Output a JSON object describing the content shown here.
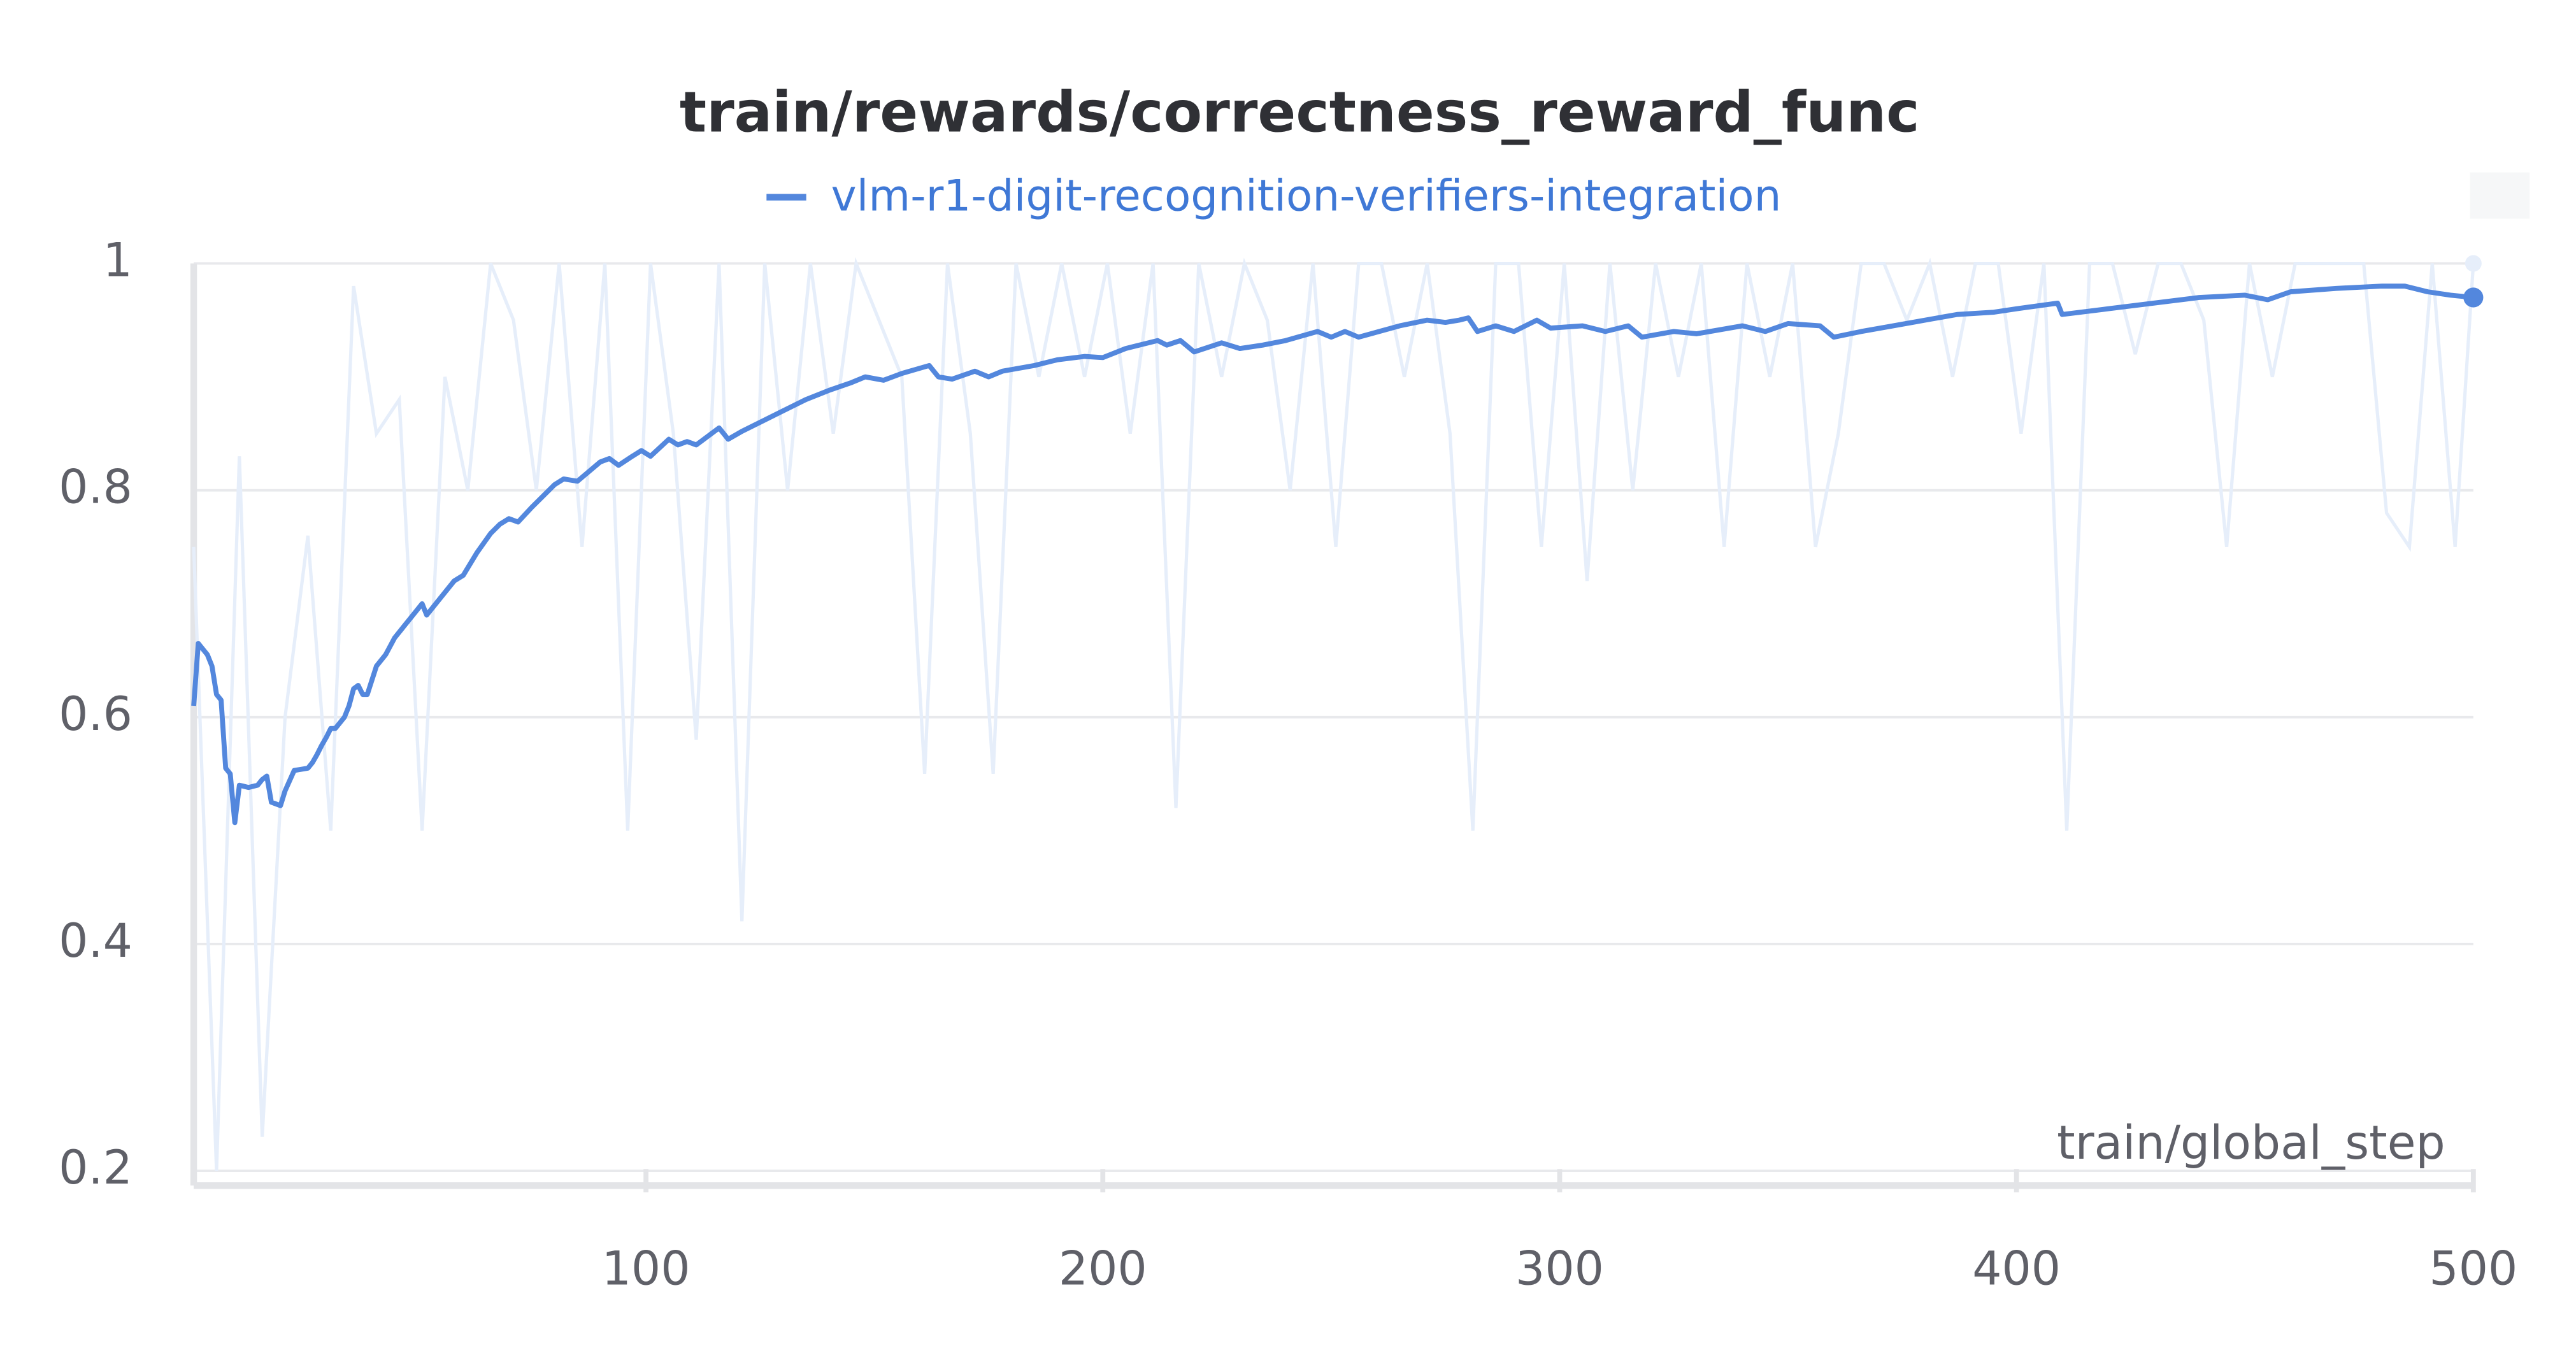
{
  "chart_data": {
    "type": "line",
    "title": "train/rewards/correctness_reward_func",
    "x_label": "train/global_step",
    "xlim": [
      1,
      500
    ],
    "xticks": [
      100,
      200,
      300,
      400,
      500
    ],
    "ylim": [
      0.187,
      1
    ],
    "yticks": [
      0.2,
      0.4,
      0.6,
      0.8,
      1
    ],
    "grid": true,
    "series": [
      {
        "name": "vlm-r1-digit-recognition-verifiers-integration",
        "color": "#5387dd",
        "raw_color": "#e6eefa",
        "x": [
          1,
          2,
          4,
          5,
          6,
          7,
          8,
          9,
          10,
          11,
          13,
          15,
          16,
          17,
          18,
          20,
          21,
          23,
          26,
          27,
          28,
          29,
          30,
          31,
          32,
          34,
          35,
          36,
          37,
          38,
          39,
          41,
          43,
          45,
          47,
          49,
          51,
          52,
          55,
          58,
          60,
          63,
          66,
          68,
          70,
          72,
          75,
          80,
          82,
          85,
          90,
          92,
          94,
          97,
          99,
          101,
          105,
          107,
          109,
          111,
          116,
          118,
          121,
          125,
          130,
          135,
          140,
          145,
          148,
          152,
          156,
          162,
          164,
          167,
          172,
          175,
          178,
          185,
          190,
          196,
          200,
          205,
          212,
          214,
          217,
          220,
          226,
          230,
          235,
          240,
          247,
          250,
          253,
          256,
          265,
          271,
          275,
          278,
          280,
          282,
          286,
          290,
          295,
          298,
          305,
          310,
          315,
          318,
          325,
          330,
          340,
          345,
          350,
          357,
          360,
          366,
          373,
          380,
          387,
          395,
          400,
          409,
          410,
          420,
          430,
          440,
          450,
          455,
          460,
          470,
          480,
          485,
          490,
          495,
          500
        ],
        "values": [
          0.61,
          0.665,
          0.655,
          0.645,
          0.62,
          0.615,
          0.555,
          0.55,
          0.507,
          0.54,
          0.538,
          0.54,
          0.545,
          0.548,
          0.525,
          0.522,
          0.535,
          0.553,
          0.555,
          0.56,
          0.567,
          0.575,
          0.582,
          0.59,
          0.59,
          0.6,
          0.61,
          0.625,
          0.628,
          0.62,
          0.62,
          0.645,
          0.655,
          0.67,
          0.68,
          0.69,
          0.7,
          0.69,
          0.705,
          0.72,
          0.725,
          0.745,
          0.762,
          0.77,
          0.775,
          0.772,
          0.785,
          0.805,
          0.81,
          0.808,
          0.825,
          0.828,
          0.822,
          0.83,
          0.835,
          0.83,
          0.845,
          0.84,
          0.843,
          0.84,
          0.855,
          0.845,
          0.852,
          0.86,
          0.87,
          0.88,
          0.888,
          0.895,
          0.9,
          0.897,
          0.903,
          0.91,
          0.9,
          0.898,
          0.905,
          0.9,
          0.905,
          0.91,
          0.915,
          0.918,
          0.917,
          0.925,
          0.932,
          0.928,
          0.932,
          0.922,
          0.93,
          0.925,
          0.928,
          0.932,
          0.94,
          0.935,
          0.94,
          0.935,
          0.945,
          0.95,
          0.948,
          0.95,
          0.952,
          0.94,
          0.945,
          0.94,
          0.95,
          0.943,
          0.945,
          0.94,
          0.945,
          0.935,
          0.94,
          0.938,
          0.945,
          0.94,
          0.947,
          0.945,
          0.935,
          0.94,
          0.945,
          0.95,
          0.955,
          0.957,
          0.96,
          0.965,
          0.955,
          0.96,
          0.965,
          0.97,
          0.972,
          0.968,
          0.975,
          0.978,
          0.98,
          0.98,
          0.975,
          0.972,
          0.97
        ],
        "raw_x": [
          1,
          6,
          11,
          16,
          21,
          26,
          31,
          36,
          41,
          46,
          51,
          56,
          61,
          66,
          71,
          76,
          81,
          86,
          91,
          96,
          101,
          106,
          111,
          116,
          121,
          126,
          131,
          136,
          141,
          146,
          151,
          156,
          161,
          166,
          171,
          176,
          181,
          186,
          191,
          196,
          201,
          206,
          211,
          216,
          221,
          226,
          231,
          236,
          241,
          246,
          251,
          256,
          261,
          266,
          271,
          276,
          281,
          286,
          291,
          296,
          301,
          306,
          311,
          316,
          321,
          326,
          331,
          336,
          341,
          346,
          351,
          356,
          361,
          366,
          371,
          376,
          381,
          386,
          391,
          396,
          401,
          406,
          411,
          416,
          421,
          426,
          431,
          436,
          441,
          446,
          451,
          456,
          461,
          466,
          471,
          476,
          481,
          486,
          491,
          496,
          500
        ],
        "raw_values": [
          0.75,
          0.2,
          0.83,
          0.23,
          0.6,
          0.76,
          0.5,
          0.98,
          0.85,
          0.88,
          0.5,
          0.9,
          0.8,
          1,
          0.95,
          0.8,
          1,
          0.75,
          1,
          0.5,
          1,
          0.85,
          0.58,
          1,
          0.42,
          1,
          0.8,
          1,
          0.85,
          1,
          0.95,
          0.9,
          0.55,
          1,
          0.85,
          0.55,
          1,
          0.9,
          1,
          0.9,
          1,
          0.85,
          1,
          0.52,
          1,
          0.9,
          1,
          0.95,
          0.8,
          1,
          0.75,
          1,
          1,
          0.9,
          1,
          0.85,
          0.5,
          1,
          1,
          0.75,
          1,
          0.72,
          1,
          0.8,
          1,
          0.9,
          1,
          0.75,
          1,
          0.9,
          1,
          0.75,
          0.85,
          1,
          1,
          0.95,
          1,
          0.9,
          1,
          1,
          0.85,
          1,
          0.5,
          1,
          1,
          0.92,
          1,
          1,
          0.95,
          0.75,
          1,
          0.9,
          1,
          1,
          1,
          1,
          0.78,
          0.75,
          1,
          0.75,
          1
        ]
      }
    ]
  }
}
